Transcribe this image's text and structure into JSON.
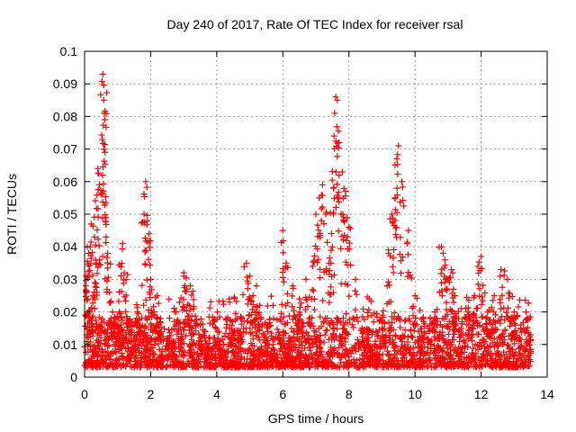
{
  "chart_data": {
    "type": "scatter",
    "title": "Day 240 of 2017, Rate Of TEC Index for receiver rsal",
    "xlabel": "GPS time / hours",
    "ylabel": "ROTI / TECUs",
    "xlim": [
      0,
      14
    ],
    "ylim": [
      0,
      0.1
    ],
    "xticks": [
      0,
      2,
      4,
      6,
      8,
      10,
      12,
      14
    ],
    "yticks": [
      0,
      0.01,
      0.02,
      0.03,
      0.04,
      0.05,
      0.06,
      0.07,
      0.08,
      0.09,
      0.1
    ],
    "xtick_labels": [
      "0",
      "2",
      "4",
      "6",
      "8",
      "10",
      "12",
      "14"
    ],
    "ytick_labels": [
      "0",
      "0.01",
      "0.02",
      "0.03",
      "0.04",
      "0.05",
      "0.06",
      "0.07",
      "0.08",
      "0.09",
      "0.1"
    ],
    "grid": true,
    "marker": "+",
    "color": "#ff0000",
    "x_range_data": [
      0,
      13.5
    ],
    "series": [
      {
        "name": "ROTI",
        "x": [
          0.05,
          0.08,
          0.1,
          0.12,
          0.15,
          0.2,
          0.25,
          0.3,
          0.35,
          0.4,
          0.45,
          0.5,
          0.55,
          0.58,
          0.6,
          0.62,
          0.65,
          0.7,
          0.75,
          0.8,
          0.85,
          0.9,
          0.95,
          1.0,
          1.05,
          1.1,
          1.15,
          1.2,
          1.3,
          1.4,
          1.5,
          1.6,
          1.7,
          1.8,
          1.85,
          1.9,
          1.95,
          2.0,
          2.1,
          2.2,
          2.3,
          2.5,
          2.7,
          2.9,
          3.0,
          3.1,
          3.2,
          3.3,
          3.5,
          3.7,
          3.9,
          4.1,
          4.3,
          4.5,
          4.7,
          4.9,
          5.0,
          5.1,
          5.2,
          5.3,
          5.5,
          5.7,
          5.9,
          6.0,
          6.1,
          6.3,
          6.5,
          6.7,
          6.9,
          7.0,
          7.1,
          7.2,
          7.3,
          7.4,
          7.5,
          7.55,
          7.6,
          7.65,
          7.7,
          7.8,
          7.9,
          8.0,
          8.2,
          8.4,
          8.6,
          8.8,
          9.0,
          9.2,
          9.3,
          9.4,
          9.45,
          9.5,
          9.6,
          9.8,
          10.0,
          10.2,
          10.4,
          10.6,
          10.8,
          10.9,
          11.0,
          11.1,
          11.2,
          11.4,
          11.6,
          11.8,
          11.9,
          12.0,
          12.2,
          12.4,
          12.6,
          12.8,
          13.0,
          13.2,
          13.4,
          13.5
        ],
        "y": [
          0.031,
          0.04,
          0.024,
          0.038,
          0.02,
          0.047,
          0.025,
          0.043,
          0.035,
          0.064,
          0.059,
          0.056,
          0.093,
          0.085,
          0.081,
          0.069,
          0.043,
          0.038,
          0.026,
          0.018,
          0.02,
          0.015,
          0.018,
          0.012,
          0.02,
          0.016,
          0.041,
          0.032,
          0.018,
          0.013,
          0.012,
          0.02,
          0.015,
          0.05,
          0.06,
          0.048,
          0.044,
          0.03,
          0.02,
          0.025,
          0.018,
          0.012,
          0.01,
          0.015,
          0.032,
          0.027,
          0.028,
          0.021,
          0.012,
          0.01,
          0.009,
          0.011,
          0.008,
          0.012,
          0.014,
          0.035,
          0.031,
          0.025,
          0.028,
          0.022,
          0.012,
          0.01,
          0.013,
          0.045,
          0.035,
          0.028,
          0.024,
          0.03,
          0.034,
          0.05,
          0.055,
          0.059,
          0.05,
          0.035,
          0.04,
          0.074,
          0.086,
          0.085,
          0.072,
          0.063,
          0.057,
          0.046,
          0.03,
          0.015,
          0.012,
          0.01,
          0.015,
          0.038,
          0.05,
          0.055,
          0.067,
          0.071,
          0.06,
          0.045,
          0.025,
          0.012,
          0.015,
          0.02,
          0.04,
          0.036,
          0.03,
          0.033,
          0.025,
          0.015,
          0.02,
          0.025,
          0.034,
          0.037,
          0.02,
          0.025,
          0.033,
          0.03,
          0.02,
          0.015,
          0.018,
          0.013
        ]
      }
    ],
    "dense_band": {
      "description_values": "baseline noise cloud between ~0.003 and ~0.025 across the full x range",
      "x_start": 0,
      "x_end": 13.5,
      "y_low": 0.003,
      "y_high": 0.025
    }
  }
}
